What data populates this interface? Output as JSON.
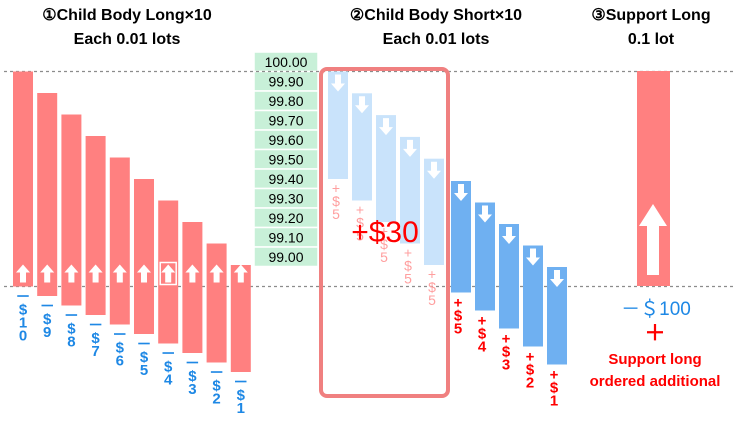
{
  "headers": {
    "long": {
      "title": "①Child Body Long×10",
      "subtitle": "Each 0.01 lots"
    },
    "short": {
      "title": "②Child Body Short×10",
      "subtitle": "Each 0.01 lots"
    },
    "support": {
      "title": "③Support Long",
      "subtitle": "0.1 lot"
    }
  },
  "price_ladder": [
    "100.00",
    "99.90",
    "99.80",
    "99.70",
    "99.60",
    "99.50",
    "99.40",
    "99.30",
    "99.20",
    "99.10",
    "99.00"
  ],
  "long_pnl_labels": [
    "－$10",
    "－$9",
    "－$8",
    "－$7",
    "－$6",
    "－$5",
    "－$4",
    "－$3",
    "－$2",
    "－$1"
  ],
  "short_profit_labels": [
    "+$5",
    "+$5",
    "+$5",
    "+$5",
    "+$5"
  ],
  "short_realized_labels": [
    "+$5",
    "+$4",
    "+$3",
    "+$2",
    "+$1"
  ],
  "short_total": "+$30",
  "support_loss": "－＄100",
  "support_plus": "＋",
  "support_note": [
    "Support long",
    "ordered additional"
  ],
  "colors": {
    "long_bar": "#ff8080",
    "short_bar_light": "#c9e3fb",
    "short_bar": "#6fb0f1",
    "ladder_bg": "#c8f0d8",
    "red_text": "#ff0000",
    "pale_red_text": "#ff9f9f",
    "blue_text": "#1e88e5",
    "highlight_box": "#f08080"
  }
}
